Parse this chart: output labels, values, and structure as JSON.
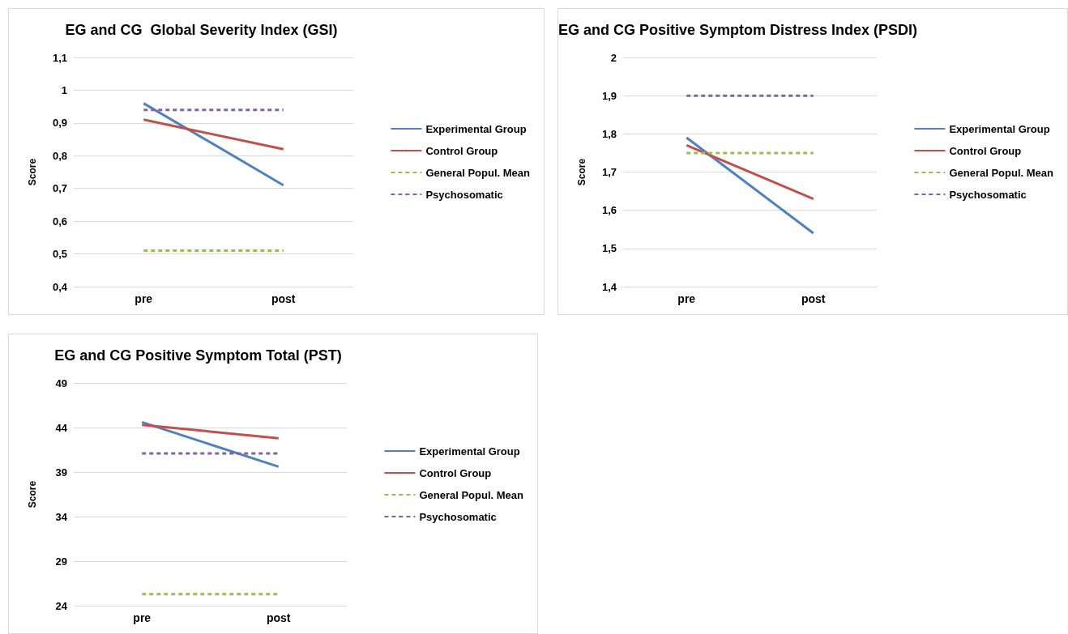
{
  "chart_data": [
    {
      "type": "line",
      "title": "EG and CG  Global Severity Index (GSI)",
      "ylabel": "Score",
      "categories": [
        "pre",
        "post"
      ],
      "ylim": [
        0.4,
        1.1
      ],
      "yticks": [
        {
          "value": 0.4,
          "label": "0,4"
        },
        {
          "value": 0.5,
          "label": "0,5"
        },
        {
          "value": 0.6,
          "label": "0,6"
        },
        {
          "value": 0.7,
          "label": "0,7"
        },
        {
          "value": 0.8,
          "label": "0,8"
        },
        {
          "value": 0.9,
          "label": "0,9"
        },
        {
          "value": 1,
          "label": "1"
        },
        {
          "value": 1.1,
          "label": "1,1"
        }
      ],
      "grid": "y",
      "legend": "right",
      "marker": "none",
      "series": [
        {
          "name": "Experimental Group",
          "color": "#4f81bd",
          "values": [
            0.96,
            0.71
          ],
          "line_style": "solid"
        },
        {
          "name": "Control Group",
          "color": "#c0504d",
          "values": [
            0.91,
            0.82
          ],
          "line_style": "solid"
        },
        {
          "name": "General Popul. Mean",
          "color": "#9bbb59",
          "values": [
            0.51,
            0.51
          ],
          "line_style": "dashed"
        },
        {
          "name": "Psychosomatic",
          "color": "#8064a2",
          "values": [
            0.94,
            0.94
          ],
          "line_style": "dashed"
        }
      ]
    },
    {
      "type": "line",
      "title": "EG and CG Positive Symptom Distress Index (PSDI)",
      "ylabel": "Score",
      "categories": [
        "pre",
        "post"
      ],
      "ylim": [
        1.4,
        2
      ],
      "yticks": [
        {
          "value": 1.4,
          "label": "1,4"
        },
        {
          "value": 1.5,
          "label": "1,5"
        },
        {
          "value": 1.6,
          "label": "1,6"
        },
        {
          "value": 1.7,
          "label": "1,7"
        },
        {
          "value": 1.8,
          "label": "1,8"
        },
        {
          "value": 1.9,
          "label": "1,9"
        },
        {
          "value": 2,
          "label": "2"
        }
      ],
      "grid": "y",
      "legend": "right",
      "marker": "none",
      "series": [
        {
          "name": "Experimental Group",
          "color": "#4f81bd",
          "values": [
            1.79,
            1.54
          ],
          "line_style": "solid"
        },
        {
          "name": "Control Group",
          "color": "#c0504d",
          "values": [
            1.77,
            1.63
          ],
          "line_style": "solid"
        },
        {
          "name": "General Popul. Mean",
          "color": "#9bbb59",
          "values": [
            1.75,
            1.75
          ],
          "line_style": "dashed"
        },
        {
          "name": "Psychosomatic",
          "color": "#8064a2",
          "values": [
            1.9,
            1.9
          ],
          "line_style": "dashed"
        }
      ]
    },
    {
      "type": "line",
      "title": "EG and CG Positive Symptom Total (PST)",
      "ylabel": "Score",
      "categories": [
        "pre",
        "post"
      ],
      "ylim": [
        24,
        49
      ],
      "yticks": [
        24,
        29,
        34,
        39,
        44,
        49
      ],
      "grid": "y",
      "legend": "right",
      "marker": "none",
      "series": [
        {
          "name": "Experimental Group",
          "color": "#4f81bd",
          "values": [
            44.6,
            39.6
          ],
          "line_style": "solid"
        },
        {
          "name": "Control Group",
          "color": "#c0504d",
          "values": [
            44.3,
            42.8
          ],
          "line_style": "solid"
        },
        {
          "name": "General Popul. Mean",
          "color": "#9bbb59",
          "values": [
            25.3,
            25.3
          ],
          "line_style": "dashed"
        },
        {
          "name": "Psychosomatic",
          "color": "#8064a2",
          "values": [
            41.1,
            41.1
          ],
          "line_style": "dashed"
        }
      ]
    }
  ]
}
